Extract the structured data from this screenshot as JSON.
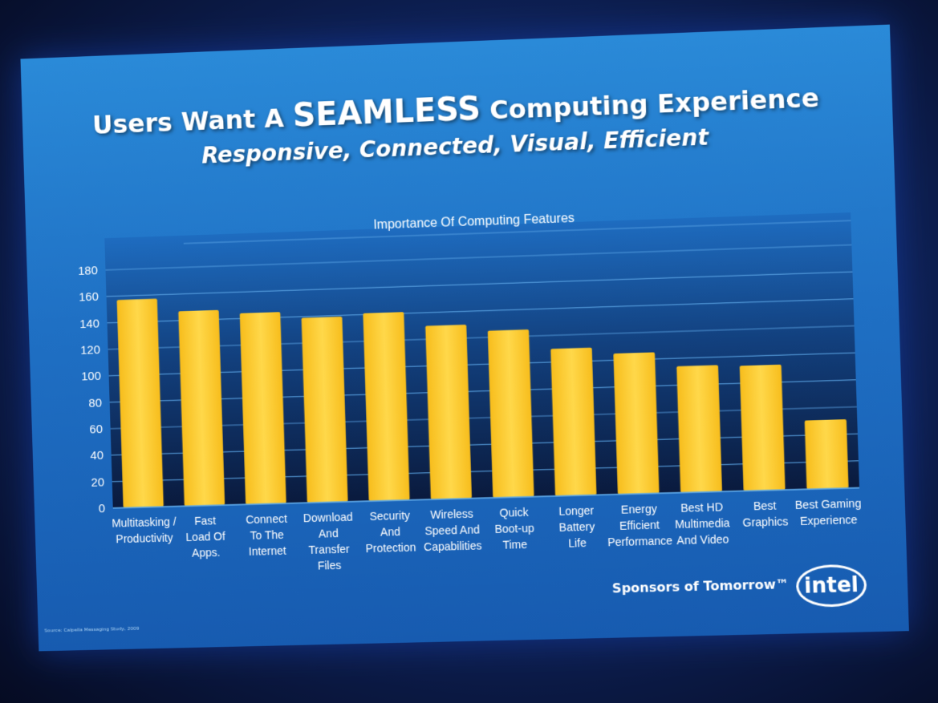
{
  "slide": {
    "title_prefix": "Users Want A ",
    "title_strong": "SEAMLESS",
    "title_suffix": " Computing Experience",
    "subtitle": "Responsive, Connected, Visual, Efficient",
    "source": "Source: Calpella Messaging Study, 2009",
    "sponsor": "Sponsors of Tomorrow™",
    "logo": "intel"
  },
  "colors": {
    "bar": "#f7bd1c",
    "bar_highlight": "#ffd84a",
    "gridline": "#5ea8e8",
    "plot_dark": "#0a1a3d",
    "text": "#ffffff"
  },
  "chart_data": {
    "type": "bar",
    "title": "Importance Of Computing Features",
    "ylim": [
      0,
      180
    ],
    "yticks": [
      0,
      20,
      40,
      60,
      80,
      100,
      120,
      140,
      160,
      180
    ],
    "grid": true,
    "categories": [
      [
        "Multitasking /",
        "Productivity"
      ],
      [
        "Fast",
        "Load Of",
        "Apps."
      ],
      [
        "Connect",
        "To The",
        "Internet"
      ],
      [
        "Download",
        "And",
        "Transfer",
        "Files"
      ],
      [
        "Security",
        "And",
        "Protection"
      ],
      [
        "Wireless",
        "Speed And",
        "Capabilities"
      ],
      [
        "Quick",
        "Boot-up",
        "Time"
      ],
      [
        "Longer",
        "Battery",
        "Life"
      ],
      [
        "Energy",
        "Efficient",
        "Performance"
      ],
      [
        "Best HD",
        "Multimedia",
        "And Video"
      ],
      [
        "Best",
        "Graphics"
      ],
      [
        "Best Gaming",
        "Experience"
      ]
    ],
    "values": [
      157,
      147,
      144,
      139,
      141,
      130,
      125,
      110,
      105,
      94,
      93,
      51
    ]
  }
}
